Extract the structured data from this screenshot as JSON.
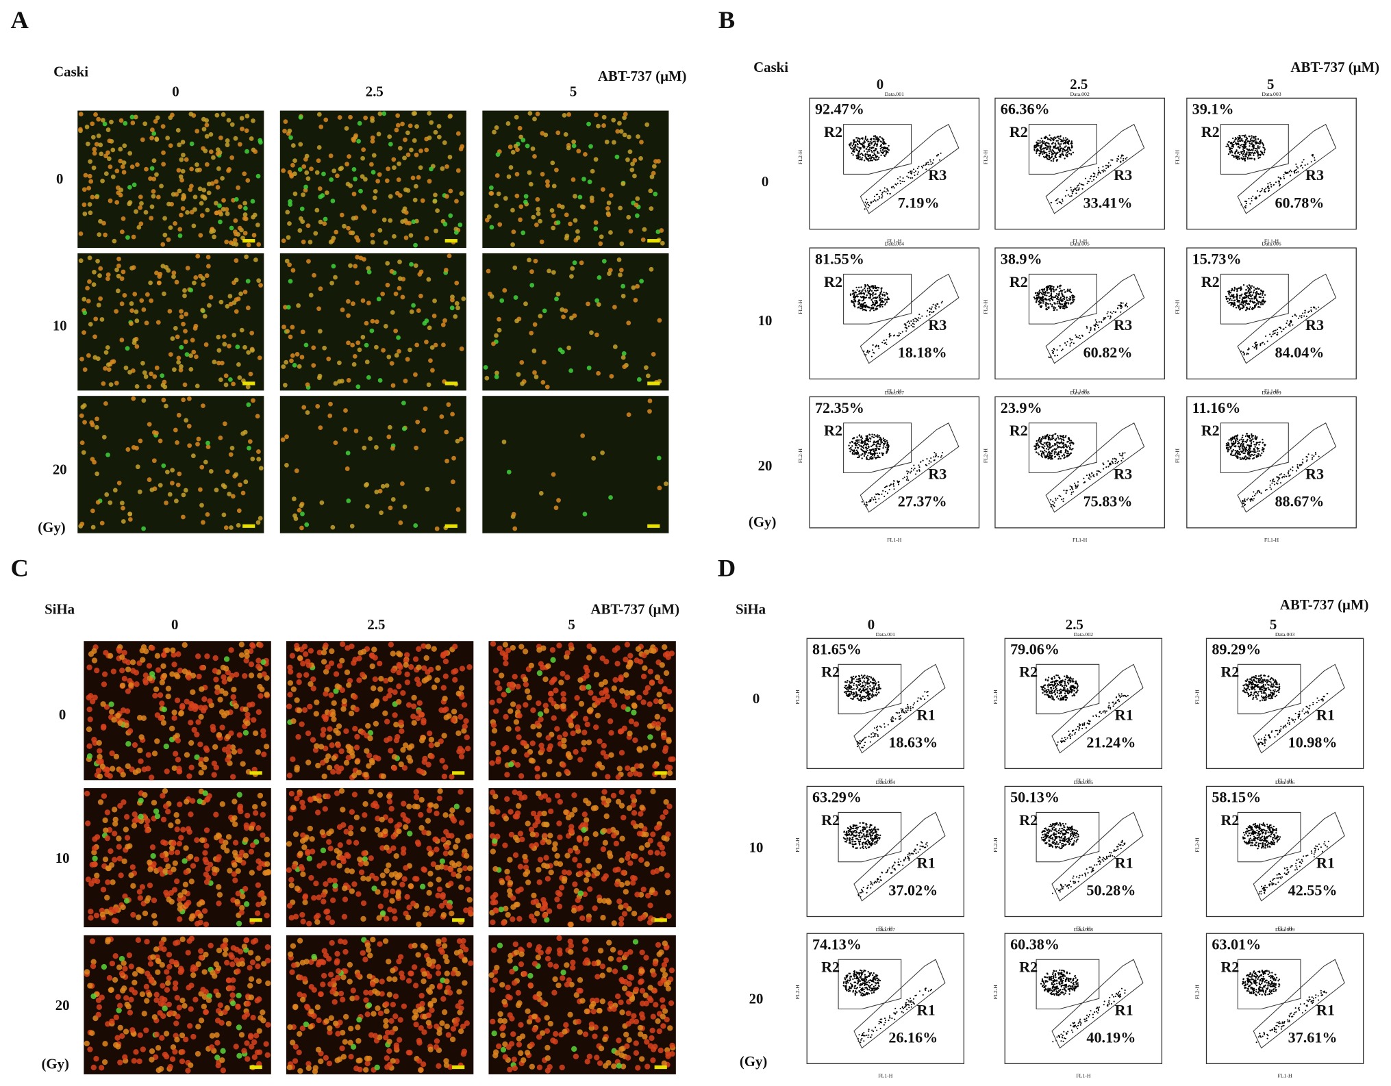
{
  "panels": [
    {
      "label": "A",
      "cell_line": "Caski",
      "treatment": "ABT-737 (μM)",
      "columns": [
        "0",
        "2.5",
        "5"
      ],
      "rows": [
        "0",
        "10",
        "20"
      ],
      "row_unit": "(Gy)"
    },
    {
      "label": "B",
      "cell_line": "Caski",
      "treatment": "ABT-737 (μM)",
      "columns": [
        "0",
        "2.5",
        "5"
      ],
      "rows": [
        "0",
        "10",
        "20"
      ],
      "row_unit": "(Gy)",
      "upper_gate": "R2",
      "lower_gate": "R3",
      "x_axis": "FL1-H",
      "y_axis": "FL2-H",
      "plots": [
        [
          {
            "file": "Data.001",
            "upper": "92.47%",
            "lower": "7.19%"
          },
          {
            "file": "Data.002",
            "upper": "66.36%",
            "lower": "33.41%"
          },
          {
            "file": "Data.003",
            "upper": "39.1%",
            "lower": "60.78%"
          }
        ],
        [
          {
            "file": "Data.004",
            "upper": "81.55%",
            "lower": "18.18%"
          },
          {
            "file": "Data.005",
            "upper": "38.9%",
            "lower": "60.82%"
          },
          {
            "file": "Data.006",
            "upper": "15.73%",
            "lower": "84.04%"
          }
        ],
        [
          {
            "file": "Data.007",
            "upper": "72.35%",
            "lower": "27.37%"
          },
          {
            "file": "Data.008",
            "upper": "23.9%",
            "lower": "75.83%"
          },
          {
            "file": "Data.009",
            "upper": "11.16%",
            "lower": "88.67%"
          }
        ]
      ]
    },
    {
      "label": "C",
      "cell_line": "SiHa",
      "treatment": "ABT-737 (μM)",
      "columns": [
        "0",
        "2.5",
        "5"
      ],
      "rows": [
        "0",
        "10",
        "20"
      ],
      "row_unit": "(Gy)"
    },
    {
      "label": "D",
      "cell_line": "SiHa",
      "treatment": "ABT-737 (μM)",
      "columns": [
        "0",
        "2.5",
        "5"
      ],
      "rows": [
        "0",
        "10",
        "20"
      ],
      "row_unit": "(Gy)",
      "upper_gate": "R2",
      "lower_gate": "R1",
      "x_axis": "FL1-H",
      "y_axis": "FL2-H",
      "plots": [
        [
          {
            "file": "Data.001",
            "upper": "81.65%",
            "lower": "18.63%"
          },
          {
            "file": "Data.002",
            "upper": "79.06%",
            "lower": "21.24%"
          },
          {
            "file": "Data.003",
            "upper": "89.29%",
            "lower": "10.98%"
          }
        ],
        [
          {
            "file": "Data.004",
            "upper": "63.29%",
            "lower": "37.02%"
          },
          {
            "file": "Data.005",
            "upper": "50.13%",
            "lower": "50.28%"
          },
          {
            "file": "Data.006",
            "upper": "58.15%",
            "lower": "42.55%"
          }
        ],
        [
          {
            "file": "Data.007",
            "upper": "74.13%",
            "lower": "26.16%"
          },
          {
            "file": "Data.008",
            "upper": "60.38%",
            "lower": "40.19%"
          },
          {
            "file": "Data.009",
            "upper": "63.01%",
            "lower": "37.61%"
          }
        ]
      ]
    }
  ]
}
